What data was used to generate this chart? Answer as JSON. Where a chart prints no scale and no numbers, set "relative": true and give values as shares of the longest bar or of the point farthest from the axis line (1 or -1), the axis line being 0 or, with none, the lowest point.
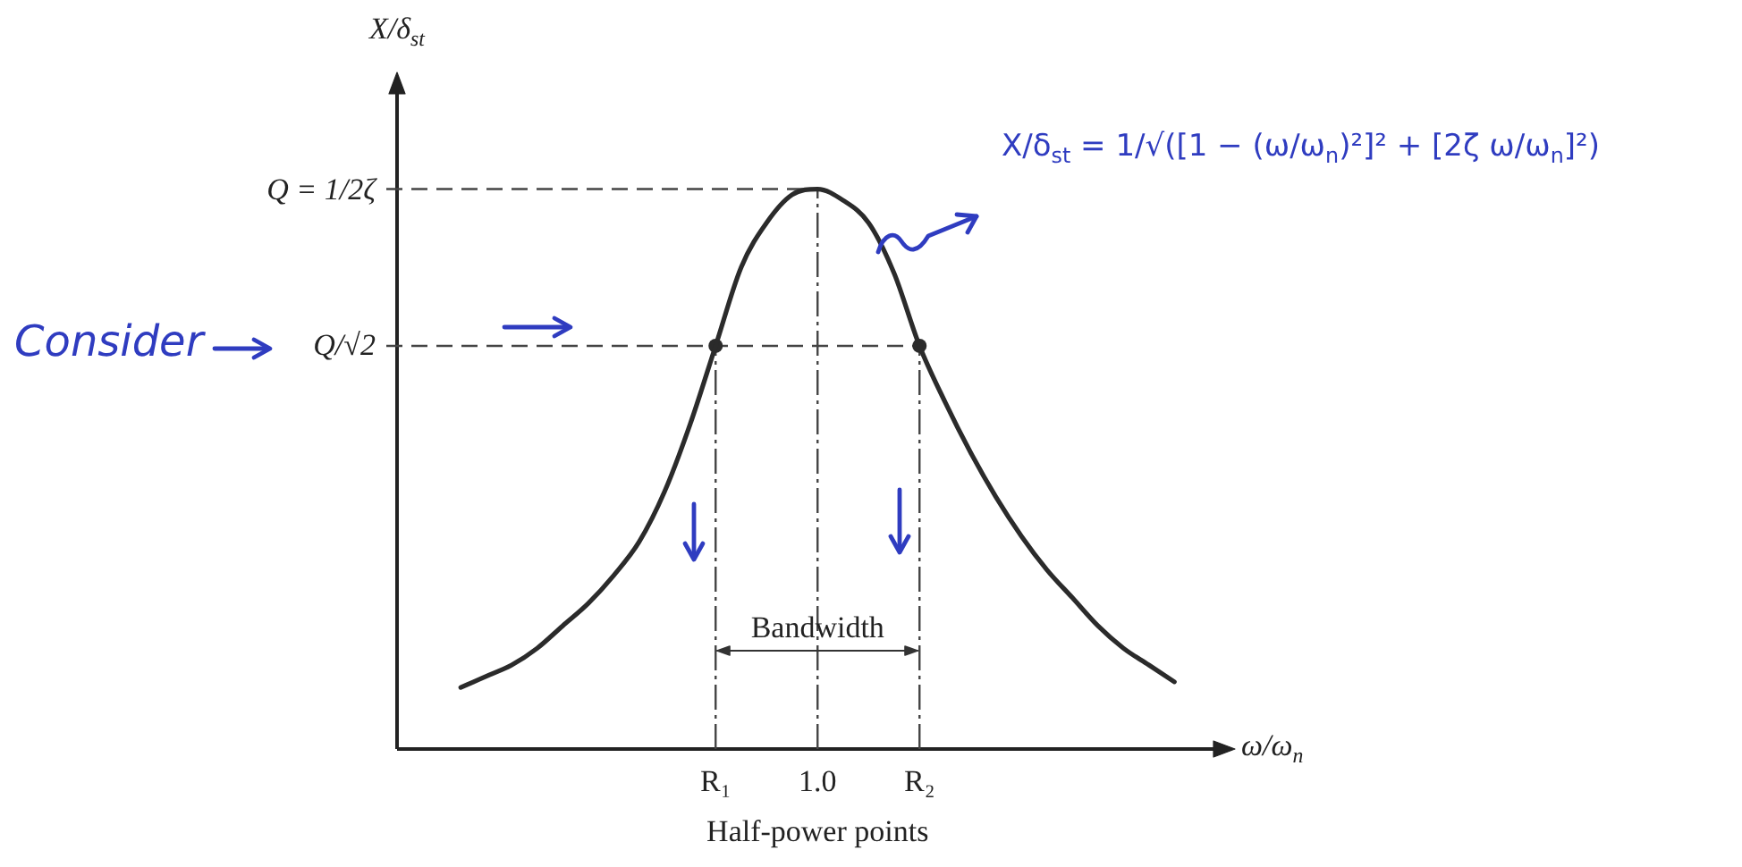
{
  "chart_data": {
    "type": "line",
    "relative": true,
    "categories": [
      null,
      null,
      null,
      null,
      null,
      null,
      null,
      null,
      null,
      null,
      null,
      null,
      "R₁",
      null,
      null,
      null,
      "1.0",
      null,
      null,
      null,
      "R₂",
      null,
      null,
      null,
      null,
      null,
      null,
      null,
      null,
      null,
      null,
      null
    ],
    "series": [
      {
        "type": "line",
        "color": "#2b2b2b",
        "marker": "none",
        "values": [
          null,
          null,
          0.11,
          0.13,
          0.15,
          0.18,
          0.22,
          0.26,
          0.31,
          0.37,
          0.46,
          0.58,
          0.72,
          0.86,
          0.94,
          0.99,
          1,
          0.98,
          0.94,
          0.85,
          0.72,
          0.62,
          0.53,
          0.45,
          0.38,
          0.32,
          0.27,
          0.22,
          0.18,
          0.15,
          0.12,
          null
        ]
      },
      {
        "type": "scatter",
        "color": "#2b2b2b",
        "marker": "circle",
        "values": [
          null,
          null,
          null,
          null,
          null,
          null,
          null,
          null,
          null,
          null,
          null,
          null,
          0.72,
          null,
          null,
          null,
          null,
          null,
          null,
          null,
          0.72,
          null,
          null,
          null,
          null,
          null,
          null,
          null,
          null,
          null,
          null,
          null
        ]
      }
    ],
    "ylabel": "X/δ$_{st}$",
    "xlabel": "ω/ω$_{n}$",
    "ref_lines": [
      {
        "axis": "y",
        "value": 1,
        "label": "Q = 1/2ζ",
        "line_style": "dashed",
        "color": "#444444"
      },
      {
        "axis": "y",
        "value": 0.72,
        "label": "Q/√2",
        "line_style": "dashed",
        "color": "#444444"
      }
    ],
    "grid": "x",
    "annotations": [
      "Consider",
      "Bandwidth",
      "Half-power points",
      "X/δ$_{st}$ = 1/√([1 − (ω/ω$_{n}$)²]² + [2ζ ω/ω$_{n}$]²)"
    ]
  }
}
